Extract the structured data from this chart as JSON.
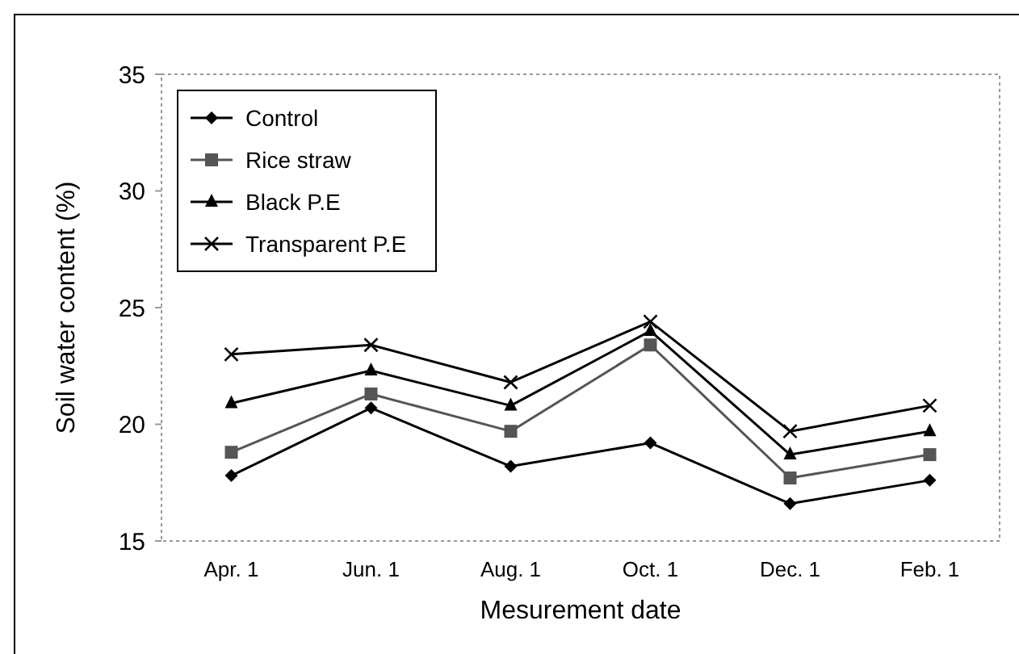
{
  "chart_data": {
    "type": "line",
    "xlabel": "Mesurement date",
    "ylabel": "Soil water content (%)",
    "categories": [
      "Apr. 1",
      "Jun. 1",
      "Aug. 1",
      "Oct. 1",
      "Dec. 1",
      "Feb. 1"
    ],
    "ylim": [
      15,
      35
    ],
    "yticks": [
      15,
      20,
      25,
      30,
      35
    ],
    "grid": false,
    "legend": "top left",
    "series": [
      {
        "name": "Control",
        "color": "#000000",
        "marker": "diamond",
        "values": [
          17.8,
          20.7,
          18.2,
          19.2,
          16.6,
          17.6
        ]
      },
      {
        "name": "Rice straw",
        "color": "#555555",
        "marker": "square",
        "values": [
          18.8,
          21.3,
          19.7,
          23.4,
          17.7,
          18.7
        ]
      },
      {
        "name": "Black P.E",
        "color": "#000000",
        "marker": "triangle",
        "values": [
          20.9,
          22.3,
          20.8,
          24.0,
          18.7,
          19.7
        ]
      },
      {
        "name": "Transparent P.E",
        "color": "#000000",
        "marker": "cross",
        "values": [
          23.0,
          23.4,
          21.8,
          24.4,
          19.7,
          20.8
        ]
      }
    ]
  }
}
